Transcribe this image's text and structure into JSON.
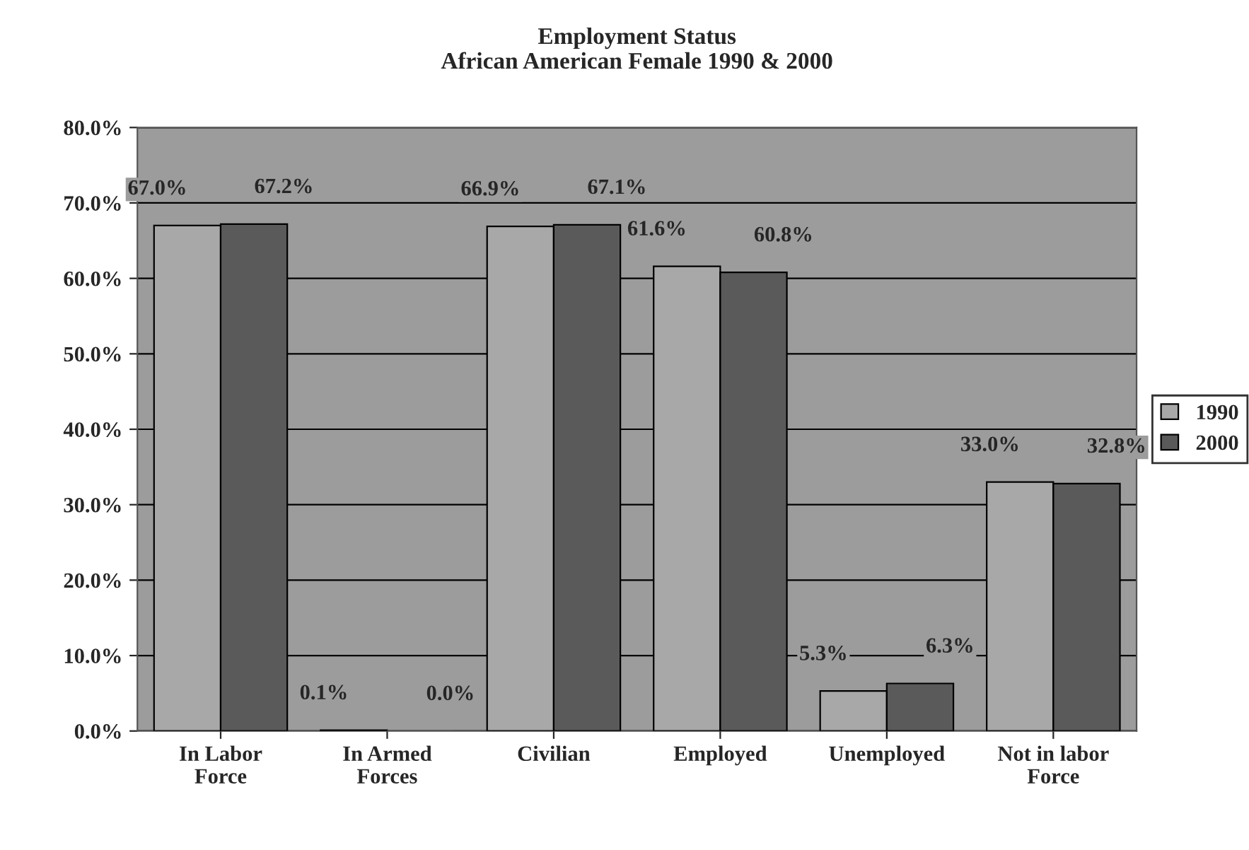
{
  "chart_data": {
    "type": "bar",
    "title": "Employment Status\nAfrican American Female 1990 & 2000",
    "categories": [
      "In Labor\nForce",
      "In Armed\nForces",
      "Civilian",
      "Employed",
      "Unemployed",
      "Not in labor\nForce"
    ],
    "series": [
      {
        "name": "1990",
        "color": "#a8a8a8",
        "values": [
          67.0,
          0.1,
          66.9,
          61.6,
          5.3,
          33.0
        ],
        "value_labels": [
          "67.0%",
          "0.1%",
          "66.9%",
          "61.6%",
          "5.3%",
          "33.0%"
        ]
      },
      {
        "name": "2000",
        "color": "#5a5a5a",
        "values": [
          67.2,
          0.0,
          67.1,
          60.8,
          6.3,
          32.8
        ],
        "value_labels": [
          "67.2%",
          "0.0%",
          "67.1%",
          "60.8%",
          "6.3%",
          "32.8%"
        ]
      }
    ],
    "ylim": [
      0,
      80
    ],
    "yticks": [
      {
        "value": 0,
        "label": "0.0%"
      },
      {
        "value": 10,
        "label": "10.0%"
      },
      {
        "value": 20,
        "label": "20.0%"
      },
      {
        "value": 30,
        "label": "30.0%"
      },
      {
        "value": 40,
        "label": "40.0%"
      },
      {
        "value": 50,
        "label": "50.0%"
      },
      {
        "value": 60,
        "label": "60.0%"
      },
      {
        "value": 70,
        "label": "70.0%"
      },
      {
        "value": 80,
        "label": "80.0%"
      }
    ],
    "grid": "y",
    "legend": "right"
  }
}
